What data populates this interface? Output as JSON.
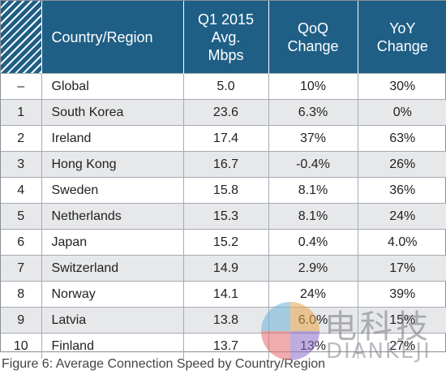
{
  "table": {
    "headers": {
      "rank": "",
      "country": "Country/Region",
      "speed": [
        "Q1 2015",
        "Avg.",
        "Mbps"
      ],
      "qoq": [
        "QoQ",
        "Change"
      ],
      "yoy": [
        "YoY",
        "Change"
      ]
    },
    "rows": [
      {
        "rank": "–",
        "country": "Global",
        "speed": "5.0",
        "qoq": "10%",
        "yoy": "30%"
      },
      {
        "rank": "1",
        "country": "South Korea",
        "speed": "23.6",
        "qoq": "6.3%",
        "yoy": "0%"
      },
      {
        "rank": "2",
        "country": "Ireland",
        "speed": "17.4",
        "qoq": "37%",
        "yoy": "63%"
      },
      {
        "rank": "3",
        "country": "Hong Kong",
        "speed": "16.7",
        "qoq": "-0.4%",
        "yoy": "26%"
      },
      {
        "rank": "4",
        "country": "Sweden",
        "speed": "15.8",
        "qoq": "8.1%",
        "yoy": "36%"
      },
      {
        "rank": "5",
        "country": "Netherlands",
        "speed": "15.3",
        "qoq": "8.1%",
        "yoy": "24%"
      },
      {
        "rank": "6",
        "country": "Japan",
        "speed": "15.2",
        "qoq": "0.4%",
        "yoy": "4.0%"
      },
      {
        "rank": "7",
        "country": "Switzerland",
        "speed": "14.9",
        "qoq": "2.9%",
        "yoy": "17%"
      },
      {
        "rank": "8",
        "country": "Norway",
        "speed": "14.1",
        "qoq": "24%",
        "yoy": "39%"
      },
      {
        "rank": "9",
        "country": "Latvia",
        "speed": "13.8",
        "qoq": "6.0%",
        "yoy": "15%"
      },
      {
        "rank": "10",
        "country": "Finland",
        "speed": "13.7",
        "qoq": "13%",
        "yoy": "27%"
      }
    ]
  },
  "caption": "Figure 6: Average Connection Speed by Country/Region",
  "watermark": {
    "cn": "电科技",
    "en": "DIANKEJI"
  },
  "colors": {
    "header_bg": "#1f5f86",
    "alt_row_bg": "#e7e8ea",
    "grid": "#a6abb2"
  }
}
